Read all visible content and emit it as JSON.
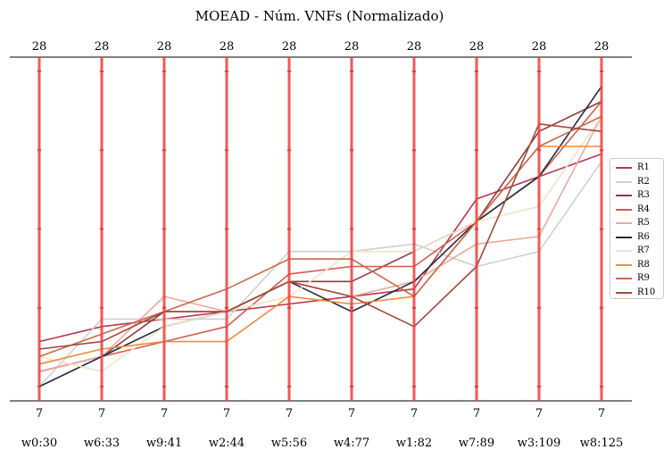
{
  "chart_data": {
    "type": "line",
    "chart_style": "parallel-coordinates",
    "title": "MOEAD - Núm. VNFs (Normalizado)",
    "axes": [
      "w0:30",
      "w6:33",
      "w9:41",
      "w2:44",
      "w5:56",
      "w4:77",
      "w1:82",
      "w7:89",
      "w3:109",
      "w8:125"
    ],
    "top_tick_labels": [
      "28",
      "28",
      "28",
      "28",
      "28",
      "28",
      "28",
      "28",
      "28",
      "28"
    ],
    "bottom_tick_labels": [
      "7",
      "7",
      "7",
      "7",
      "7",
      "7",
      "7",
      "7",
      "7",
      "7"
    ],
    "ylim": [
      7,
      28
    ],
    "axis_color": "#f03b3b",
    "legend_position": "right",
    "series": [
      {
        "name": "R1",
        "color": "#b5364e",
        "values": [
          10.0,
          11.0,
          11.5,
          12.0,
          12.5,
          13.0,
          13.5,
          19.5,
          21.0,
          22.5
        ]
      },
      {
        "name": "R2",
        "color": "#d0d0d0",
        "values": [
          7.0,
          11.5,
          11.5,
          11.5,
          16.0,
          16.0,
          16.5,
          15.0,
          16.0,
          22.0
        ]
      },
      {
        "name": "R3",
        "color": "#8e3a3a",
        "values": [
          8.0,
          9.0,
          12.0,
          12.0,
          14.0,
          14.0,
          16.0,
          18.0,
          24.0,
          26.0
        ]
      },
      {
        "name": "R4",
        "color": "#d45c4f",
        "values": [
          8.0,
          9.0,
          10.0,
          11.0,
          14.5,
          15.0,
          15.0,
          18.0,
          21.0,
          26.0
        ]
      },
      {
        "name": "R5",
        "color": "#f0a79a",
        "values": [
          8.0,
          9.0,
          13.0,
          12.0,
          14.0,
          13.0,
          14.0,
          16.5,
          17.0,
          25.0
        ]
      },
      {
        "name": "R6",
        "color": "#222a3a",
        "values": [
          7.0,
          9.0,
          11.0,
          12.0,
          14.0,
          12.0,
          14.0,
          18.0,
          21.0,
          27.0
        ]
      },
      {
        "name": "R7",
        "color": "#f2e2c8",
        "values": [
          9.0,
          8.0,
          11.0,
          12.0,
          13.0,
          16.0,
          16.0,
          18.0,
          19.0,
          25.0
        ]
      },
      {
        "name": "R8",
        "color": "#f08a3c",
        "values": [
          8.5,
          9.5,
          10.0,
          10.0,
          13.0,
          12.5,
          13.0,
          18.0,
          23.0,
          23.0
        ]
      },
      {
        "name": "R9",
        "color": "#c9694a",
        "values": [
          9.0,
          10.5,
          12.0,
          13.5,
          15.5,
          15.5,
          13.0,
          18.0,
          23.0,
          25.0
        ]
      },
      {
        "name": "R10",
        "color": "#a34a3a",
        "values": [
          9.5,
          10.0,
          12.0,
          12.0,
          14.0,
          13.0,
          11.0,
          15.0,
          24.5,
          24.0
        ]
      }
    ]
  }
}
